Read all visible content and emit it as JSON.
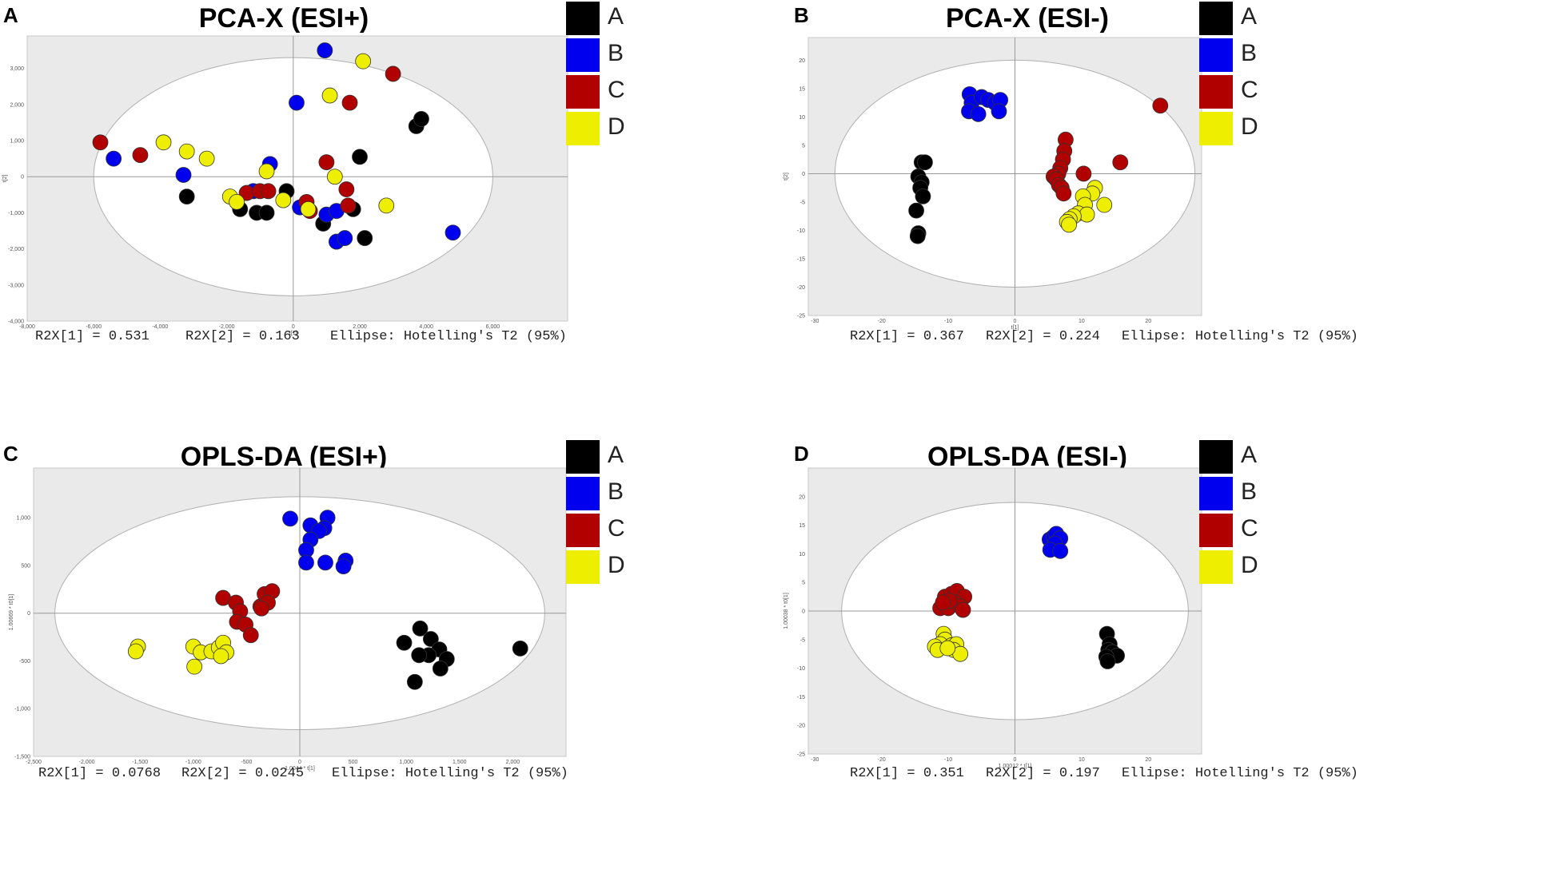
{
  "groups": [
    {
      "label": "A",
      "color": "#000000"
    },
    {
      "label": "B",
      "color": "#0000ee"
    },
    {
      "label": "C",
      "color": "#b00000"
    },
    {
      "label": "D",
      "color": "#eeee00"
    }
  ],
  "chart_data": [
    {
      "panel": "A",
      "type": "scatter",
      "title": "PCA-X (ESI+)",
      "xlabel": "t[1]",
      "ylabel": "t[2]",
      "xlim": [
        -8000,
        8250
      ],
      "ylim": [
        -4000,
        3900
      ],
      "xticks": [
        -8000,
        -6000,
        -4000,
        -2000,
        0,
        2000,
        4000,
        6000
      ],
      "xtick_labels": [
        "-8,000",
        "-6,000",
        "-4,000",
        "-2,000",
        "0",
        "2,000",
        "4,000",
        "6,000"
      ],
      "yticks": [
        -4000,
        -3000,
        -2000,
        -1000,
        0,
        1000,
        2000,
        3000
      ],
      "ytick_labels": [
        "-4,000",
        "-3,000",
        "-2,000",
        "-1,000",
        "0",
        "1,000",
        "2,000",
        "3,000"
      ],
      "ellipse": {
        "rx": 6000,
        "ry": 3300
      },
      "stats": {
        "r2x1": "R2X[1] = 0.531",
        "r2x2": "R2X[2] = 0.163",
        "ellipse": "Ellipse: Hotelling's T2 (95%)"
      },
      "series": [
        {
          "name": "A",
          "points": [
            [
              -3200,
              -550
            ],
            [
              -1600,
              -900
            ],
            [
              -1100,
              -1000
            ],
            [
              -800,
              -1000
            ],
            [
              -200,
              -400
            ],
            [
              900,
              -1300
            ],
            [
              1800,
              -900
            ],
            [
              2000,
              550
            ],
            [
              2150,
              -1700
            ],
            [
              3700,
              1400
            ],
            [
              3850,
              1600
            ]
          ]
        },
        {
          "name": "B",
          "points": [
            [
              -5400,
              500
            ],
            [
              -3300,
              50
            ],
            [
              -1200,
              -400
            ],
            [
              -700,
              350
            ],
            [
              100,
              2050
            ],
            [
              200,
              -850
            ],
            [
              950,
              3500
            ],
            [
              1000,
              -1050
            ],
            [
              1300,
              -950
            ],
            [
              1300,
              -1800
            ],
            [
              1550,
              -1700
            ],
            [
              4800,
              -1550
            ]
          ]
        },
        {
          "name": "C",
          "points": [
            [
              -5800,
              950
            ],
            [
              -4600,
              600
            ],
            [
              -1400,
              -450
            ],
            [
              -1000,
              -400
            ],
            [
              -750,
              -400
            ],
            [
              400,
              -700
            ],
            [
              500,
              -950
            ],
            [
              1000,
              400
            ],
            [
              1600,
              -350
            ],
            [
              1650,
              -800
            ],
            [
              1700,
              2050
            ],
            [
              3000,
              2850
            ]
          ]
        },
        {
          "name": "D",
          "points": [
            [
              -3900,
              950
            ],
            [
              -3200,
              700
            ],
            [
              -2600,
              500
            ],
            [
              -1900,
              -550
            ],
            [
              -1700,
              -700
            ],
            [
              -800,
              150
            ],
            [
              -300,
              -650
            ],
            [
              450,
              -900
            ],
            [
              1100,
              2250
            ],
            [
              1250,
              0
            ],
            [
              2100,
              3200
            ],
            [
              2800,
              -800
            ]
          ]
        }
      ]
    },
    {
      "panel": "B",
      "type": "scatter",
      "title": "PCA-X (ESI-)",
      "xlabel": "t[1]",
      "ylabel": "t[2]",
      "xlim": [
        -31,
        28
      ],
      "ylim": [
        -25,
        24
      ],
      "xticks": [
        -30,
        -20,
        -10,
        0,
        10,
        20
      ],
      "xtick_labels": [
        "-30",
        "-20",
        "-10",
        "0",
        "10",
        "20"
      ],
      "yticks": [
        -25,
        -20,
        -15,
        -10,
        -5,
        0,
        5,
        10,
        15,
        20
      ],
      "ytick_labels": [
        "-25",
        "-20",
        "-15",
        "-10",
        "-5",
        "0",
        "5",
        "10",
        "15",
        "20"
      ],
      "ellipse": {
        "rx": 27,
        "ry": 20
      },
      "stats": {
        "r2x1": "R2X[1] = 0.367",
        "r2x2": "R2X[2] = 0.224",
        "ellipse": "Ellipse: Hotelling's T2 (95%)"
      },
      "series": [
        {
          "name": "A",
          "points": [
            [
              -14,
              2
            ],
            [
              -13.5,
              2
            ],
            [
              -14.5,
              -0.5
            ],
            [
              -14,
              -1.5
            ],
            [
              -14.2,
              -2.5
            ],
            [
              -13.8,
              -4
            ],
            [
              -14.8,
              -6.5
            ],
            [
              -14.5,
              -10.5
            ],
            [
              -14.6,
              -11
            ]
          ]
        },
        {
          "name": "B",
          "points": [
            [
              -6.8,
              14
            ],
            [
              -6.5,
              12.5
            ],
            [
              -5,
              13.5
            ],
            [
              -4,
              13
            ],
            [
              -3,
              12.5
            ],
            [
              -2.2,
              13
            ],
            [
              -6.9,
              11
            ],
            [
              -5.5,
              10.5
            ],
            [
              -2.4,
              11
            ]
          ]
        },
        {
          "name": "C",
          "points": [
            [
              7.6,
              6
            ],
            [
              7.4,
              4
            ],
            [
              7.2,
              2.5
            ],
            [
              6.8,
              1
            ],
            [
              6.5,
              0
            ],
            [
              5.8,
              -0.5
            ],
            [
              6.2,
              -1
            ],
            [
              6.6,
              -2
            ],
            [
              7,
              -2.5
            ],
            [
              7.3,
              -3.5
            ],
            [
              10.3,
              0
            ],
            [
              15.8,
              2
            ],
            [
              21.8,
              12
            ]
          ]
        },
        {
          "name": "D",
          "points": [
            [
              12,
              -2.5
            ],
            [
              11.6,
              -3.5
            ],
            [
              10.2,
              -4
            ],
            [
              10.5,
              -5.5
            ],
            [
              13.4,
              -5.5
            ],
            [
              9.5,
              -7
            ],
            [
              10.8,
              -7.2
            ],
            [
              8.8,
              -7.5
            ],
            [
              8.2,
              -8
            ],
            [
              7.8,
              -8.5
            ],
            [
              8.1,
              -9
            ]
          ]
        }
      ]
    },
    {
      "panel": "C",
      "type": "scatter",
      "title": "OPLS-DA (ESI+)",
      "xlabel": "1.0044 * t[1]",
      "ylabel": "1.00669 * t0[1]",
      "xlim": [
        -2500,
        2500
      ],
      "ylim": [
        -1500,
        1520
      ],
      "xticks": [
        -2500,
        -2000,
        -1500,
        -1000,
        -500,
        0,
        500,
        1000,
        1500,
        2000
      ],
      "xtick_labels": [
        "-2,500",
        "-2,000",
        "-1,500",
        "-1,000",
        "-500",
        "0",
        "500",
        "1,000",
        "1,500",
        "2,000"
      ],
      "yticks": [
        -1500,
        -1000,
        -500,
        0,
        500,
        1000
      ],
      "ytick_labels": [
        "-1,500",
        "-1,000",
        "-500",
        "0",
        "500",
        "1,000"
      ],
      "ellipse": {
        "rx": 2300,
        "ry": 1220
      },
      "stats": {
        "r2x1": "R2X[1] = 0.0768",
        "r2x2": "R2X[2] = 0.0245",
        "ellipse": "Ellipse: Hotelling's T2 (95%)"
      },
      "series": [
        {
          "name": "A",
          "points": [
            [
              1130,
              -160
            ],
            [
              1230,
              -270
            ],
            [
              1310,
              -380
            ],
            [
              1380,
              -480
            ],
            [
              1320,
              -580
            ],
            [
              1210,
              -440
            ],
            [
              1120,
              -440
            ],
            [
              980,
              -310
            ],
            [
              1080,
              -720
            ],
            [
              2070,
              -370
            ]
          ]
        },
        {
          "name": "B",
          "points": [
            [
              -90,
              990
            ],
            [
              100,
              920
            ],
            [
              260,
              1000
            ],
            [
              230,
              890
            ],
            [
              180,
              860
            ],
            [
              100,
              770
            ],
            [
              60,
              660
            ],
            [
              60,
              530
            ],
            [
              240,
              530
            ],
            [
              430,
              550
            ],
            [
              410,
              490
            ]
          ]
        },
        {
          "name": "C",
          "points": [
            [
              -720,
              160
            ],
            [
              -600,
              110
            ],
            [
              -560,
              20
            ],
            [
              -590,
              -90
            ],
            [
              -510,
              -120
            ],
            [
              -460,
              -230
            ],
            [
              -370,
              70
            ],
            [
              -330,
              200
            ],
            [
              -260,
              230
            ],
            [
              -300,
              110
            ],
            [
              -360,
              50
            ]
          ]
        },
        {
          "name": "D",
          "points": [
            [
              -1520,
              -350
            ],
            [
              -1540,
              -400
            ],
            [
              -1000,
              -350
            ],
            [
              -930,
              -410
            ],
            [
              -830,
              -400
            ],
            [
              -760,
              -360
            ],
            [
              -720,
              -310
            ],
            [
              -690,
              -410
            ],
            [
              -740,
              -450
            ],
            [
              -990,
              -560
            ]
          ]
        }
      ]
    },
    {
      "panel": "D",
      "type": "scatter",
      "title": "OPLS-DA (ESI-)",
      "xlabel": "1.00012 * t[1]",
      "ylabel": "1.00038 * t0[1]",
      "xlim": [
        -31,
        28
      ],
      "ylim": [
        -25,
        25
      ],
      "xticks": [
        -30,
        -20,
        -10,
        0,
        10,
        20
      ],
      "xtick_labels": [
        "-30",
        "-20",
        "-10",
        "0",
        "10",
        "20"
      ],
      "yticks": [
        -25,
        -20,
        -15,
        -10,
        -5,
        0,
        5,
        10,
        15,
        20
      ],
      "ytick_labels": [
        "-25",
        "-20",
        "-15",
        "-10",
        "-5",
        "0",
        "5",
        "10",
        "15",
        "20"
      ],
      "ellipse": {
        "rx": 26,
        "ry": 19
      },
      "stats": {
        "r2x1": "R2X[1] = 0.351",
        "r2x2": "R2X[2] = 0.197",
        "ellipse": "Ellipse: Hotelling's T2 (95%)"
      },
      "series": [
        {
          "name": "A",
          "points": [
            [
              13.8,
              -4
            ],
            [
              14.2,
              -5.8
            ],
            [
              14,
              -6.8
            ],
            [
              14.6,
              -7.2
            ],
            [
              15.3,
              -7.8
            ],
            [
              13.7,
              -8
            ],
            [
              13.9,
              -8.8
            ]
          ]
        },
        {
          "name": "B",
          "points": [
            [
              5.2,
              12.5
            ],
            [
              5.8,
              13
            ],
            [
              6.2,
              13.5
            ],
            [
              6.8,
              12.7
            ],
            [
              6,
              11.8
            ],
            [
              5.3,
              10.7
            ],
            [
              6.8,
              10.5
            ]
          ]
        },
        {
          "name": "C",
          "points": [
            [
              -10.5,
              2.5
            ],
            [
              -9.5,
              3
            ],
            [
              -8.7,
              3.5
            ],
            [
              -7.6,
              2.5
            ],
            [
              -9,
              1.5
            ],
            [
              -11.2,
              0.5
            ],
            [
              -10,
              0.5
            ],
            [
              -8.2,
              0.8
            ],
            [
              -7.8,
              0.2
            ],
            [
              -9.8,
              1.8
            ],
            [
              -10.8,
              1.5
            ]
          ]
        },
        {
          "name": "D",
          "points": [
            [
              -10.7,
              -4
            ],
            [
              -10.5,
              -5
            ],
            [
              -11.2,
              -5.8
            ],
            [
              -9.5,
              -6
            ],
            [
              -8.8,
              -5.8
            ],
            [
              -12,
              -6.2
            ],
            [
              -11.6,
              -6.8
            ],
            [
              -9.2,
              -6.8
            ],
            [
              -8.2,
              -7.5
            ],
            [
              -10.1,
              -6.5
            ]
          ]
        }
      ]
    }
  ]
}
